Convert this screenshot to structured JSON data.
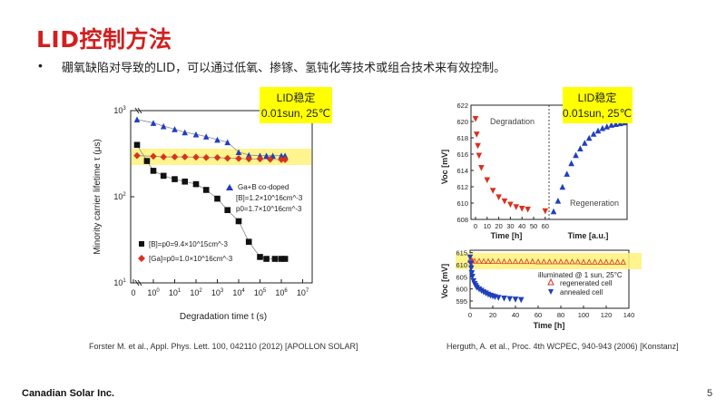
{
  "slide": {
    "title": "LID控制方法",
    "bullet": "•",
    "text": "硼氧缺陷对导致的LID，可以通过低氧、掺镓、氢钝化等技术或组合技术来有效控制。",
    "caption_left": "Forster M. et al., Appl. Phys. Lett. 100, 042110 (2012) [APOLLON SOLAR]",
    "caption_right": "Herguth, A. et al., Proc. 4th WCPEC, 940-943 (2006) [Konstanz]",
    "footer": "Canadian Solar Inc.",
    "page": "5"
  },
  "colors": {
    "title": "#d21f1f",
    "highlight": "#ffff00",
    "highlight_band": "#fff27a",
    "blue_series": "#1f3fbf",
    "red_series": "#d8321e",
    "black_series": "#111111"
  },
  "tags": {
    "left": {
      "line1": "LID稳定",
      "line2": "0.01sun, 25℃"
    },
    "right": {
      "line1": "LID稳定",
      "line2": "0.01sun, 25℃"
    }
  },
  "chart_data": [
    {
      "type": "scatter",
      "title": "",
      "xlabel": "Degradation time t (s)",
      "ylabel": "Minority carrier lifetime τ (μs)",
      "x_scale": "broken-log (linear 0 segment + log 10^0–10^7)",
      "y_scale": "log",
      "ylim": [
        10,
        1000
      ],
      "x_ticks": [
        "0",
        "10^0",
        "10^1",
        "10^2",
        "10^3",
        "10^4",
        "10^5",
        "10^6",
        "10^7"
      ],
      "y_ticks": [
        "10^1",
        "10^2",
        "10^3"
      ],
      "legend": [
        "Ga+B co-doped",
        "[B]=1.2×10^16cm^-3",
        "p0=1.7×10^16cm^-3",
        "[B]=p0=9.4×10^15cm^-3",
        "[Ga]=p0=1.0×10^16cm^-3"
      ],
      "series": [
        {
          "name": "Ga+B co-doped",
          "color": "#1f3fbf",
          "marker": "triangle",
          "x": [
            0,
            1,
            3,
            10,
            30,
            100,
            300,
            1000,
            3000,
            10000,
            30000,
            100000,
            200000,
            400000,
            1000000,
            1500000
          ],
          "y": [
            790,
            720,
            660,
            610,
            560,
            530,
            500,
            460,
            430,
            330,
            305,
            300,
            300,
            300,
            300,
            300
          ]
        },
        {
          "name": "[Ga]=p0=1.0×10^16cm^-3",
          "color": "#d8321e",
          "marker": "diamond",
          "x": [
            0,
            1,
            3,
            10,
            30,
            100,
            300,
            1000,
            3000,
            10000,
            30000,
            100000,
            300000,
            1000000,
            1500000
          ],
          "y": [
            300,
            295,
            290,
            290,
            290,
            288,
            285,
            285,
            280,
            278,
            275,
            275,
            272,
            270,
            270
          ]
        },
        {
          "name": "[B]=p0=9.4×10^15cm^-3",
          "color": "#111111",
          "marker": "square",
          "x": [
            0,
            0.5,
            1,
            3,
            10,
            30,
            100,
            300,
            1000,
            3000,
            10000,
            30000,
            100000,
            200000,
            500000,
            1000000,
            1500000
          ],
          "y": [
            400,
            260,
            200,
            175,
            160,
            150,
            140,
            120,
            95,
            70,
            52,
            30,
            20,
            19,
            19,
            19,
            19
          ]
        }
      ]
    },
    {
      "type": "scatter",
      "title": "",
      "xlabel": "Time [h]",
      "xlabel2": "Time [a.u.]",
      "ylabel": "Voc [mV]",
      "ylim": [
        608,
        622
      ],
      "y_ticks": [
        608,
        610,
        612,
        614,
        616,
        618,
        620,
        622
      ],
      "x_ticks": [
        0,
        10,
        20,
        30,
        40,
        50,
        60
      ],
      "annotations": [
        "Degradation",
        "Regeneration"
      ],
      "series": [
        {
          "name": "Degradation",
          "color": "#d8321e",
          "marker": "triangle-down",
          "x": [
            0,
            1,
            2,
            3,
            5,
            10,
            15,
            20,
            25,
            30,
            35,
            40,
            45,
            60
          ],
          "y": [
            620.3,
            618.4,
            617.0,
            615.8,
            614.3,
            612.8,
            611.5,
            610.7,
            610.2,
            609.8,
            609.5,
            609.3,
            609.2,
            609.0
          ]
        },
        {
          "name": "Regeneration",
          "color": "#1f3fbf",
          "marker": "triangle",
          "x": [
            0,
            1,
            2,
            3,
            4,
            5,
            6,
            7,
            8,
            9,
            10,
            11,
            12,
            13,
            14,
            15,
            16
          ],
          "y": [
            609.0,
            610.3,
            612.0,
            613.6,
            614.9,
            615.9,
            616.7,
            617.4,
            618.0,
            618.5,
            618.9,
            619.2,
            619.4,
            619.6,
            619.7,
            619.8,
            619.9
          ]
        }
      ]
    },
    {
      "type": "scatter",
      "title": "",
      "xlabel": "Time [h]",
      "ylabel": "Voc [mV]",
      "ylim": [
        592,
        616
      ],
      "y_ticks": [
        595,
        600,
        605,
        610,
        615
      ],
      "x_ticks": [
        0,
        20,
        40,
        60,
        80,
        100,
        120,
        140
      ],
      "legend": [
        "illuminated @ 1 sun, 25°C",
        "regenerated cell",
        "annealed cell"
      ],
      "series": [
        {
          "name": "regenerated cell",
          "color": "#d8321e",
          "marker": "triangle-open",
          "x": [
            0,
            1,
            2,
            4,
            8,
            12,
            16,
            20,
            25,
            30,
            35,
            40,
            45,
            50,
            55,
            60,
            65,
            70,
            75,
            80,
            85,
            90,
            95,
            100,
            105,
            110,
            115,
            120,
            125,
            130,
            135
          ],
          "y": [
            612,
            611.8,
            611.7,
            611.6,
            611.6,
            611.5,
            611.5,
            611.5,
            611.5,
            611.4,
            611.4,
            611.4,
            611.4,
            611.4,
            611.4,
            611.3,
            611.3,
            611.3,
            611.3,
            611.3,
            611.3,
            611.3,
            611.3,
            611.2,
            611.2,
            611.2,
            611.2,
            611.2,
            611.2,
            611.2,
            611.2
          ]
        },
        {
          "name": "annealed cell",
          "color": "#1f3fbf",
          "marker": "triangle-down",
          "x": [
            0,
            0.5,
            1,
            1.5,
            2,
            3,
            4,
            5,
            6,
            8,
            10,
            12,
            14,
            16,
            18,
            20,
            22,
            25,
            30,
            35,
            40,
            45
          ],
          "y": [
            613,
            610.5,
            608.5,
            606.5,
            605,
            603.2,
            602,
            601.2,
            600.5,
            599.8,
            599.2,
            598.6,
            598.1,
            597.6,
            597.2,
            596.9,
            596.6,
            596.3,
            596,
            595.8,
            595.6,
            595.4
          ]
        }
      ]
    }
  ]
}
